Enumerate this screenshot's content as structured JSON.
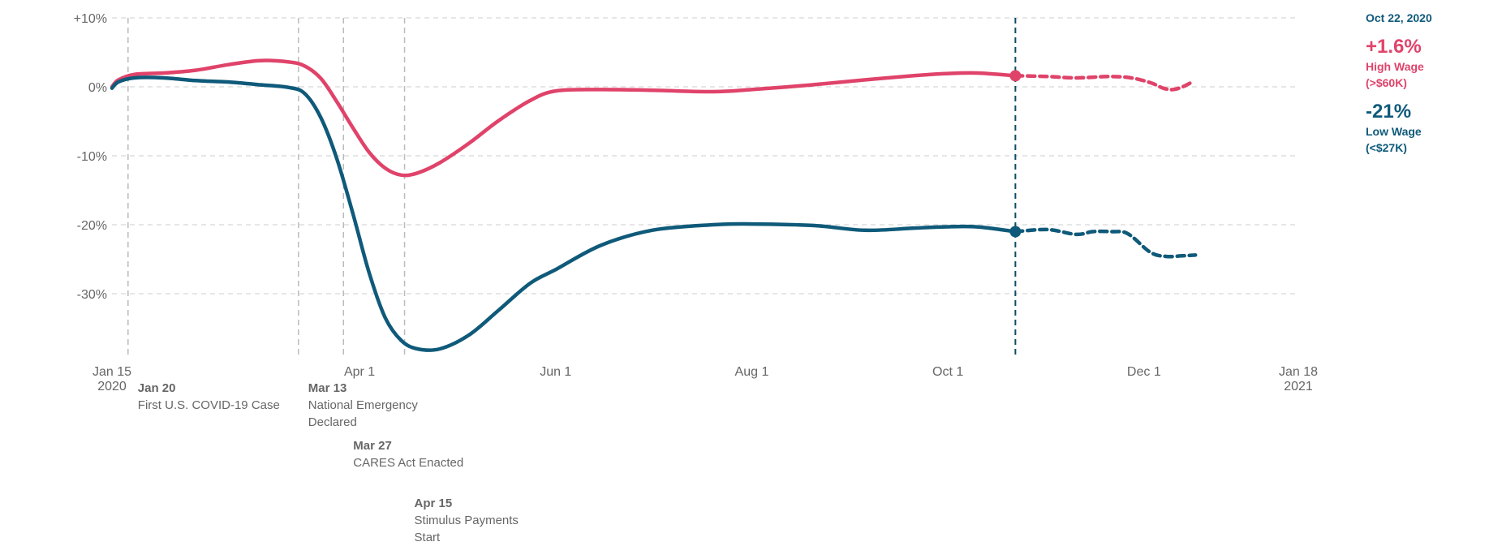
{
  "chart_data": {
    "type": "line",
    "y_ticks": [
      {
        "value": 10,
        "label": "+10%"
      },
      {
        "value": 0,
        "label": "0%"
      },
      {
        "value": -10,
        "label": "-10%"
      },
      {
        "value": -20,
        "label": "-20%"
      },
      {
        "value": -30,
        "label": "-30%"
      }
    ],
    "ylim": [
      -38,
      10
    ],
    "xlim": [
      "2020-01-15",
      "2021-01-18"
    ],
    "x_ticks": [
      {
        "date": "2020-01-15",
        "label": "Jan 15",
        "sub": "2020"
      },
      {
        "date": "2020-04-01",
        "label": "Apr 1",
        "sub": ""
      },
      {
        "date": "2020-06-01",
        "label": "Jun 1",
        "sub": ""
      },
      {
        "date": "2020-08-01",
        "label": "Aug 1",
        "sub": ""
      },
      {
        "date": "2020-10-01",
        "label": "Oct 1",
        "sub": ""
      },
      {
        "date": "2020-12-01",
        "label": "Dec 1",
        "sub": ""
      },
      {
        "date": "2021-01-18",
        "label": "Jan 18",
        "sub": "2021"
      }
    ],
    "grid": true,
    "events": [
      {
        "date": "2020-01-20",
        "label_date": "Jan 20",
        "lines": [
          "First U.S. COVID-19 Case"
        ]
      },
      {
        "date": "2020-03-13",
        "label_date": "Mar 13",
        "lines": [
          "National Emergency",
          "Declared"
        ]
      },
      {
        "date": "2020-03-27",
        "label_date": "Mar 27",
        "lines": [
          "CARES Act Enacted"
        ]
      },
      {
        "date": "2020-04-15",
        "label_date": "Apr 15",
        "lines": [
          "Stimulus Payments",
          "Start"
        ]
      }
    ],
    "marker_date": "2020-10-22",
    "series": [
      {
        "name": "High Wage (>$60K)",
        "color": "#e0436a",
        "values": [
          [
            "2020-01-15",
            0.0
          ],
          [
            "2020-01-17",
            1.0
          ],
          [
            "2020-01-22",
            1.8
          ],
          [
            "2020-01-31",
            2.0
          ],
          [
            "2020-02-10",
            2.4
          ],
          [
            "2020-02-20",
            3.2
          ],
          [
            "2020-03-01",
            3.8
          ],
          [
            "2020-03-10",
            3.6
          ],
          [
            "2020-03-15",
            3.0
          ],
          [
            "2020-03-20",
            1.2
          ],
          [
            "2020-03-25",
            -2.2
          ],
          [
            "2020-03-30",
            -6.0
          ],
          [
            "2020-04-04",
            -9.5
          ],
          [
            "2020-04-09",
            -11.8
          ],
          [
            "2020-04-14",
            -12.8
          ],
          [
            "2020-04-19",
            -12.5
          ],
          [
            "2020-04-26",
            -11.0
          ],
          [
            "2020-05-05",
            -8.2
          ],
          [
            "2020-05-14",
            -5.0
          ],
          [
            "2020-05-24",
            -2.0
          ],
          [
            "2020-06-01",
            -0.6
          ],
          [
            "2020-06-15",
            -0.4
          ],
          [
            "2020-07-01",
            -0.5
          ],
          [
            "2020-07-20",
            -0.7
          ],
          [
            "2020-08-01",
            -0.4
          ],
          [
            "2020-08-20",
            0.3
          ],
          [
            "2020-09-05",
            1.0
          ],
          [
            "2020-09-20",
            1.6
          ],
          [
            "2020-09-30",
            1.9
          ],
          [
            "2020-10-10",
            2.0
          ],
          [
            "2020-10-22",
            1.6
          ]
        ],
        "projected": [
          [
            "2020-10-22",
            1.6
          ],
          [
            "2020-11-01",
            1.5
          ],
          [
            "2020-11-10",
            1.3
          ],
          [
            "2020-11-20",
            1.5
          ],
          [
            "2020-11-27",
            1.3
          ],
          [
            "2020-12-03",
            0.6
          ],
          [
            "2020-12-07",
            -0.2
          ],
          [
            "2020-12-10",
            -0.4
          ],
          [
            "2020-12-13",
            0.0
          ],
          [
            "2020-12-16",
            0.7
          ]
        ]
      },
      {
        "name": "Low Wage (<$27K)",
        "color": "#0f5a7a",
        "values": [
          [
            "2020-01-15",
            -0.2
          ],
          [
            "2020-01-17",
            0.7
          ],
          [
            "2020-01-22",
            1.3
          ],
          [
            "2020-01-31",
            1.3
          ],
          [
            "2020-02-10",
            0.9
          ],
          [
            "2020-02-20",
            0.7
          ],
          [
            "2020-03-01",
            0.3
          ],
          [
            "2020-03-10",
            -0.1
          ],
          [
            "2020-03-15",
            -1.0
          ],
          [
            "2020-03-20",
            -4.5
          ],
          [
            "2020-03-25",
            -10.5
          ],
          [
            "2020-03-30",
            -18.5
          ],
          [
            "2020-04-04",
            -27.0
          ],
          [
            "2020-04-09",
            -33.5
          ],
          [
            "2020-04-14",
            -36.8
          ],
          [
            "2020-04-19",
            -38.0
          ],
          [
            "2020-04-26",
            -38.0
          ],
          [
            "2020-05-05",
            -36.0
          ],
          [
            "2020-05-14",
            -32.5
          ],
          [
            "2020-05-24",
            -28.5
          ],
          [
            "2020-06-01",
            -26.5
          ],
          [
            "2020-06-15",
            -23.0
          ],
          [
            "2020-07-01",
            -20.8
          ],
          [
            "2020-07-20",
            -20.0
          ],
          [
            "2020-08-01",
            -19.9
          ],
          [
            "2020-08-20",
            -20.1
          ],
          [
            "2020-09-05",
            -20.8
          ],
          [
            "2020-09-20",
            -20.5
          ],
          [
            "2020-09-30",
            -20.3
          ],
          [
            "2020-10-10",
            -20.3
          ],
          [
            "2020-10-22",
            -21.0
          ]
        ],
        "projected": [
          [
            "2020-10-22",
            -21.0
          ],
          [
            "2020-11-01",
            -20.7
          ],
          [
            "2020-11-10",
            -21.4
          ],
          [
            "2020-11-15",
            -21.0
          ],
          [
            "2020-11-21",
            -21.0
          ],
          [
            "2020-11-26",
            -21.3
          ],
          [
            "2020-12-03",
            -24.0
          ],
          [
            "2020-12-08",
            -24.6
          ],
          [
            "2020-12-13",
            -24.5
          ],
          [
            "2020-12-17",
            -24.4
          ]
        ]
      }
    ]
  },
  "callout": {
    "date": "Oct 22, 2020",
    "high_value": "+1.6%",
    "high_label_1": "High Wage",
    "high_label_2": "(>$60K)",
    "low_value": "-21%",
    "low_label_1": "Low Wage",
    "low_label_2": "(<$27K)"
  }
}
